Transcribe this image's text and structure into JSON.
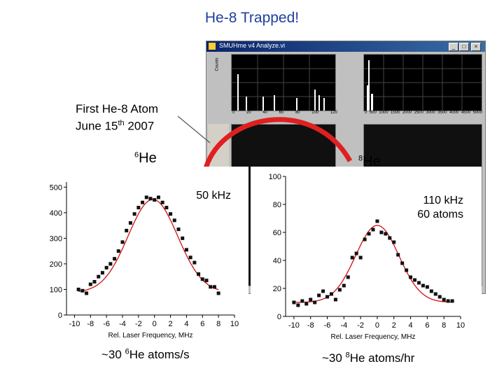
{
  "slide": {
    "title": "He-8 Trapped!",
    "caption_line1": "First He-8 Atom",
    "caption_line2_prefix": "June 15",
    "caption_line2_sup": "th",
    "caption_line2_suffix": " 2007"
  },
  "window": {
    "title": "SMUHme v4 Analyze.vi",
    "minimize_label": "_",
    "maximize_label": "□",
    "close_label": "×",
    "panel1": {
      "ylabel": "Counts",
      "xticks": [
        "0",
        "20",
        "40",
        "60",
        "80",
        "100",
        "120"
      ]
    },
    "panel2": {
      "xticks": [
        "0",
        "500",
        "1000",
        "1500",
        "2000",
        "2500",
        "3000",
        "3500",
        "4000",
        "4500",
        "5000"
      ]
    }
  },
  "left_plot": {
    "mass_number": "6",
    "element": "He",
    "note": "50 kHz",
    "footer_prefix": "~30 ",
    "footer_sup": "6",
    "footer_suffix": "He atoms/s"
  },
  "right_plot": {
    "mass_number": "8",
    "element": "He",
    "note_line1": "110 kHz",
    "note_line2": "60 atoms",
    "footer_prefix": "~30 ",
    "footer_sup": "8",
    "footer_suffix": "He atoms/hr"
  },
  "chart_data": [
    {
      "type": "scatter",
      "xlabel": "Rel. Laser Frequency, MHz",
      "ylabel": "",
      "xlim": [
        -11,
        10
      ],
      "ylim": [
        0,
        520
      ],
      "xticks": [
        -10,
        -8,
        -6,
        -4,
        -2,
        0,
        2,
        4,
        6,
        8,
        10
      ],
      "yticks": [
        0,
        100,
        200,
        300,
        400,
        500
      ],
      "points_x": [
        -9.5,
        -9,
        -8.5,
        -8,
        -7.5,
        -7,
        -6.5,
        -6,
        -5.5,
        -5,
        -4.5,
        -4,
        -3.5,
        -3,
        -2.5,
        -2,
        -1.5,
        -1,
        -0.5,
        0,
        0.5,
        1,
        1.5,
        2,
        2.5,
        3,
        3.5,
        4,
        4.5,
        5,
        5.5,
        6,
        6.5,
        7,
        7.5,
        8
      ],
      "points_y": [
        100,
        95,
        85,
        120,
        130,
        150,
        165,
        185,
        200,
        220,
        250,
        285,
        330,
        360,
        395,
        420,
        440,
        460,
        455,
        450,
        460,
        440,
        420,
        395,
        370,
        335,
        300,
        255,
        225,
        205,
        160,
        140,
        135,
        110,
        110,
        85
      ],
      "fit_center": -0.2,
      "fit_peak": 452,
      "fit_baseline": 88,
      "fit_sigma": 3.1,
      "grid": false
    },
    {
      "type": "scatter",
      "xlabel": "Rel. Laser Frequency, MHz",
      "ylabel": "",
      "xlim": [
        -11,
        10
      ],
      "ylim": [
        0,
        100
      ],
      "xticks": [
        -10,
        -8,
        -6,
        -4,
        -2,
        0,
        2,
        4,
        6,
        8,
        10
      ],
      "yticks": [
        0,
        20,
        40,
        60,
        80,
        100
      ],
      "points_x": [
        -10,
        -9.5,
        -9,
        -8.5,
        -8,
        -7.5,
        -7,
        -6.5,
        -6,
        -5.5,
        -5,
        -4.5,
        -4,
        -3.5,
        -3,
        -2.5,
        -2,
        -1.5,
        -1,
        -0.5,
        0,
        0.5,
        1,
        1.5,
        2,
        2.5,
        3,
        3.5,
        4,
        4.5,
        5,
        5.5,
        6,
        6.5,
        7,
        7.5,
        8,
        8.5,
        9
      ],
      "points_y": [
        10,
        8,
        11,
        9,
        12,
        10,
        15,
        18,
        14,
        16,
        12,
        19,
        22,
        28,
        42,
        45,
        42,
        55,
        59,
        62,
        68,
        60,
        59,
        56,
        53,
        44,
        38,
        33,
        28,
        26,
        24,
        22,
        21,
        18,
        16,
        14,
        12,
        11,
        11
      ],
      "fit_center": 0,
      "fit_peak": 65,
      "fit_baseline": 10,
      "fit_sigma": 2.6,
      "grid": false
    }
  ]
}
